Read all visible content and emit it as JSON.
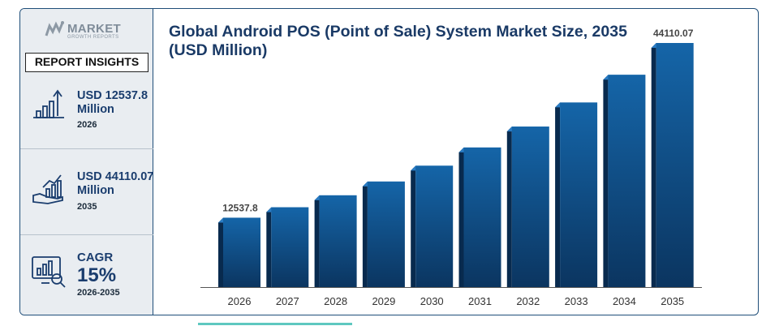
{
  "sidebar": {
    "logo": {
      "name": "MARKET",
      "subtitle": "GROWTH REPORTS"
    },
    "badge": "REPORT INSIGHTS",
    "stats": [
      {
        "value_line1": "USD 12537.8",
        "value_line2": "Million",
        "year": "2026"
      },
      {
        "value_line1": "USD 44110.07",
        "value_line2": "Million",
        "year": "2035"
      }
    ],
    "cagr": {
      "label": "CAGR",
      "value": "15%",
      "years": "2026-2035"
    }
  },
  "chart_data": {
    "type": "bar",
    "title": "Global Android POS (Point of Sale) System Market Size, 2035 (USD Million)",
    "categories": [
      "2026",
      "2027",
      "2028",
      "2029",
      "2030",
      "2031",
      "2032",
      "2033",
      "2034",
      "2035"
    ],
    "values": [
      12537.8,
      14420,
      16580,
      19070,
      21930,
      25220,
      29000,
      33350,
      38360,
      44110.07
    ],
    "data_labels": [
      {
        "index": 0,
        "text": "12537.8"
      },
      {
        "index": 9,
        "text": "44110.07"
      }
    ],
    "xlabel": "",
    "ylabel": "",
    "ylim": [
      0,
      44110.07
    ],
    "grid": false,
    "legend": "none",
    "colors": {
      "front_top": "#1565a8",
      "front_bottom": "#0b3560",
      "side": "#082a4e",
      "top": "#2a7cc4"
    }
  }
}
